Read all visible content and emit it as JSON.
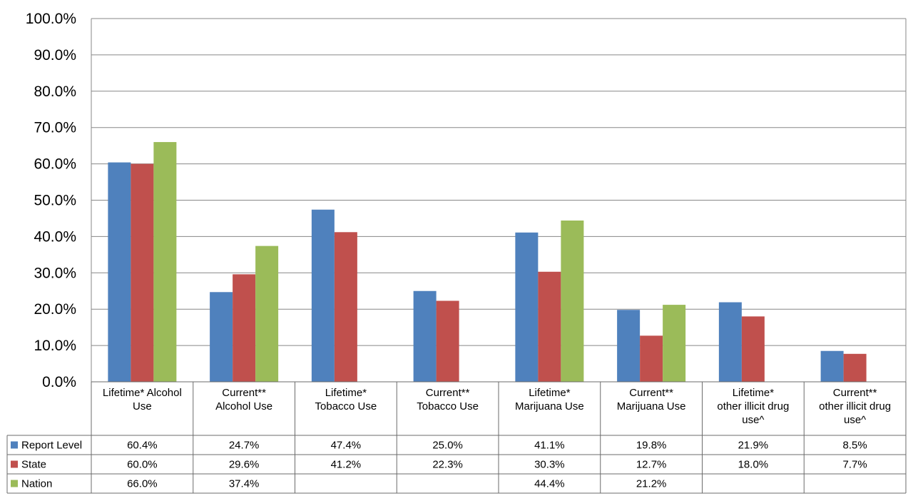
{
  "chart_data": {
    "type": "bar",
    "title": "",
    "xlabel": "",
    "ylabel": "",
    "ylim": [
      0,
      100
    ],
    "y_ticks": [
      "0.0%",
      "10.0%",
      "20.0%",
      "30.0%",
      "40.0%",
      "50.0%",
      "60.0%",
      "70.0%",
      "80.0%",
      "90.0%",
      "100.0%"
    ],
    "grid": true,
    "legend": "data-table",
    "categories": [
      [
        "Lifetime* Alcohol",
        "Use"
      ],
      [
        "Current**",
        "Alcohol Use"
      ],
      [
        "Lifetime*",
        "Tobacco Use"
      ],
      [
        "Current**",
        "Tobacco Use"
      ],
      [
        "Lifetime*",
        "Marijuana Use"
      ],
      [
        "Current**",
        "Marijuana Use"
      ],
      [
        "Lifetime*",
        "other illicit drug",
        "use^"
      ],
      [
        "Current**",
        "other illicit drug",
        "use^"
      ]
    ],
    "series": [
      {
        "name": "Report Level",
        "color": "#4F81BD",
        "values": [
          60.4,
          24.7,
          47.4,
          25.0,
          41.1,
          19.8,
          21.9,
          8.5
        ],
        "labels": [
          "60.4%",
          "24.7%",
          "47.4%",
          "25.0%",
          "41.1%",
          "19.8%",
          "21.9%",
          "8.5%"
        ]
      },
      {
        "name": "State",
        "color": "#C0504D",
        "values": [
          60.0,
          29.6,
          41.2,
          22.3,
          30.3,
          12.7,
          18.0,
          7.7
        ],
        "labels": [
          "60.0%",
          "29.6%",
          "41.2%",
          "22.3%",
          "30.3%",
          "12.7%",
          "18.0%",
          "7.7%"
        ]
      },
      {
        "name": "Nation",
        "color": "#9BBB59",
        "values": [
          66.0,
          37.4,
          null,
          null,
          44.4,
          21.2,
          null,
          null
        ],
        "labels": [
          "66.0%",
          "37.4%",
          "",
          "",
          "44.4%",
          "21.2%",
          "",
          ""
        ]
      }
    ]
  }
}
